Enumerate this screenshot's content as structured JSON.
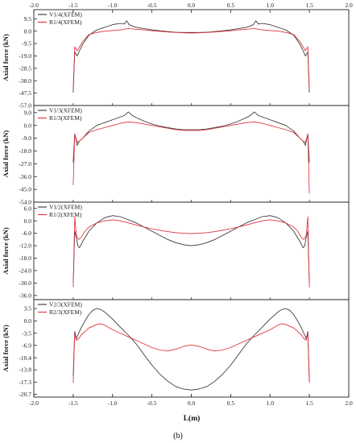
{
  "figure": {
    "caption": "(b)",
    "xlabel": "L(m)",
    "x_ticks": [
      "-2.0",
      "-1.5",
      "-1.0",
      "-0.5",
      "0.0",
      "0.5",
      "1.0",
      "1.5",
      "2.0"
    ],
    "x_range": [
      -2.0,
      2.0
    ]
  },
  "colors": {
    "black_series": "#333333",
    "red_series": "#e0303a",
    "axis": "#222222"
  },
  "chart_data": [
    {
      "type": "line",
      "ylabel": "Axial force (kN)",
      "ylim": [
        -57.0,
        16.5
      ],
      "y_ticks": [
        9.5,
        0.0,
        -9.5,
        -19.0,
        -28.5,
        -38.0,
        -47.5,
        -57.0
      ],
      "y_tick_labels": [
        "9.5",
        "0.0",
        "-9.5",
        "-19.0",
        "-28.5",
        "-38.0",
        "-47.5",
        "-57.0"
      ],
      "legend_position": "top-left",
      "series": [
        {
          "name": "V1/4(XFEM)",
          "color": "#333333",
          "x": [
            -1.5,
            -1.48,
            -1.45,
            -1.42,
            -1.38,
            -1.3,
            -1.2,
            -1.1,
            -1.0,
            -0.95,
            -0.9,
            -0.85,
            -0.82,
            -0.79,
            -0.75,
            -0.7,
            -0.6,
            -0.5,
            -0.4,
            -0.3,
            -0.2,
            -0.1,
            0.0,
            0.1,
            0.2,
            0.3,
            0.4,
            0.5,
            0.6,
            0.7,
            0.75,
            0.79,
            0.82,
            0.85,
            0.9,
            0.95,
            1.0,
            1.1,
            1.2,
            1.3,
            1.38,
            1.42,
            1.45,
            1.48,
            1.5
          ],
          "y": [
            -47.0,
            -16.0,
            -19.0,
            -15.0,
            -10.0,
            -3.0,
            1.0,
            3.0,
            5.0,
            5.5,
            6.0,
            5.5,
            8.0,
            5.0,
            4.0,
            3.0,
            2.0,
            1.0,
            0.3,
            -0.3,
            -0.8,
            -1.0,
            -1.0,
            -1.0,
            -0.8,
            -0.3,
            0.3,
            1.0,
            2.0,
            3.0,
            4.0,
            5.0,
            8.0,
            5.5,
            6.0,
            5.5,
            5.0,
            3.0,
            1.0,
            -3.0,
            -10.0,
            -15.0,
            -19.0,
            -16.0,
            -47.0
          ]
        },
        {
          "name": "R1/4(XFEM)",
          "color": "#e0303a",
          "x": [
            -1.5,
            -1.48,
            -1.45,
            -1.42,
            -1.38,
            -1.3,
            -1.2,
            -1.1,
            -1.0,
            -0.9,
            -0.8,
            -0.7,
            -0.6,
            -0.5,
            -0.4,
            -0.3,
            -0.2,
            -0.1,
            0.0,
            0.1,
            0.2,
            0.3,
            0.4,
            0.5,
            0.6,
            0.7,
            0.8,
            0.9,
            1.0,
            1.1,
            1.2,
            1.3,
            1.38,
            1.42,
            1.45,
            1.48,
            1.5
          ],
          "y": [
            -45.0,
            -12.0,
            -15.0,
            -12.0,
            -8.0,
            -2.5,
            -1.0,
            0.0,
            0.5,
            1.0,
            2.0,
            1.5,
            1.0,
            0.3,
            -0.2,
            -0.6,
            -1.0,
            -1.2,
            -1.5,
            -1.2,
            -1.0,
            -0.6,
            -0.2,
            0.3,
            1.0,
            1.5,
            2.0,
            1.0,
            0.5,
            0.0,
            -1.0,
            -2.5,
            -8.0,
            -12.0,
            -15.0,
            -12.0,
            -45.0
          ]
        }
      ]
    },
    {
      "type": "line",
      "ylabel": "Axial force (kN)",
      "ylim": [
        -54.0,
        14.0
      ],
      "y_ticks": [
        9.0,
        0.0,
        -9.0,
        -18.0,
        -27.0,
        -36.0,
        -45.0,
        -54.0
      ],
      "y_tick_labels": [
        "9.0",
        "0.0",
        "-9.0",
        "-18.0",
        "-27.0",
        "-36.0",
        "-45.0",
        "-54.0"
      ],
      "legend_position": "top-left",
      "series": [
        {
          "name": "V1/3(XFEM)",
          "color": "#333333",
          "x": [
            -1.5,
            -1.48,
            -1.45,
            -1.42,
            -1.38,
            -1.3,
            -1.2,
            -1.1,
            -1.0,
            -0.9,
            -0.85,
            -0.8,
            -0.75,
            -0.7,
            -0.6,
            -0.5,
            -0.4,
            -0.3,
            -0.2,
            -0.1,
            0.0,
            0.1,
            0.2,
            0.3,
            0.4,
            0.5,
            0.6,
            0.7,
            0.75,
            0.8,
            0.85,
            0.9,
            1.0,
            1.1,
            1.2,
            1.3,
            1.38,
            1.42,
            1.45,
            1.48,
            1.5
          ],
          "y": [
            -26.0,
            -6.0,
            -14.0,
            -11.0,
            -9.0,
            -4.0,
            0.0,
            2.0,
            4.0,
            6.0,
            7.0,
            9.5,
            7.0,
            5.5,
            3.0,
            1.0,
            -0.5,
            -1.5,
            -2.5,
            -3.0,
            -3.0,
            -3.0,
            -2.5,
            -1.5,
            -0.5,
            1.0,
            3.0,
            5.5,
            7.0,
            9.5,
            7.0,
            6.0,
            4.0,
            2.0,
            0.0,
            -4.0,
            -9.0,
            -11.0,
            -14.0,
            -6.0,
            -26.0
          ]
        },
        {
          "name": "R1/3(XFEM)",
          "color": "#e0303a",
          "x": [
            -1.5,
            -1.48,
            -1.45,
            -1.42,
            -1.38,
            -1.3,
            -1.2,
            -1.1,
            -1.0,
            -0.9,
            -0.8,
            -0.7,
            -0.6,
            -0.5,
            -0.4,
            -0.3,
            -0.2,
            -0.1,
            0.0,
            0.1,
            0.2,
            0.3,
            0.4,
            0.5,
            0.6,
            0.7,
            0.8,
            0.9,
            1.0,
            1.1,
            1.2,
            1.3,
            1.38,
            1.42,
            1.45,
            1.48,
            1.5
          ],
          "y": [
            -42.0,
            -6.0,
            -12.0,
            -11.0,
            -9.0,
            -5.0,
            -3.0,
            -1.5,
            0.0,
            1.5,
            2.5,
            2.0,
            1.0,
            0.0,
            -1.0,
            -2.0,
            -3.0,
            -3.5,
            -3.5,
            -3.5,
            -3.0,
            -2.0,
            -1.0,
            0.0,
            1.0,
            2.0,
            2.5,
            1.5,
            0.0,
            -1.5,
            -3.0,
            -5.0,
            -9.0,
            -11.0,
            -12.0,
            -6.0,
            -48.0
          ]
        }
      ]
    },
    {
      "type": "line",
      "ylabel": "Axial force (kN)",
      "ylim": [
        -38.0,
        9.0
      ],
      "y_ticks": [
        6.0,
        0.0,
        -6.0,
        -12.0,
        -18.0,
        -24.0,
        -30.0,
        -36.0
      ],
      "y_tick_labels": [
        "6.0",
        "0.0",
        "-6.0",
        "-12.0",
        "-18.0",
        "-24.0",
        "-30.0",
        "-36.0"
      ],
      "legend_position": "top-left",
      "series": [
        {
          "name": "V1/2(XFEM)",
          "color": "#333333",
          "x": [
            -1.5,
            -1.48,
            -1.46,
            -1.44,
            -1.42,
            -1.38,
            -1.3,
            -1.2,
            -1.1,
            -1.0,
            -0.9,
            -0.8,
            -0.7,
            -0.6,
            -0.5,
            -0.4,
            -0.3,
            -0.2,
            -0.1,
            0.0,
            0.1,
            0.2,
            0.3,
            0.4,
            0.5,
            0.6,
            0.7,
            0.8,
            0.9,
            1.0,
            1.1,
            1.2,
            1.3,
            1.38,
            1.42,
            1.44,
            1.46,
            1.48,
            1.5
          ],
          "y": [
            -30.0,
            -5.0,
            -8.0,
            -12.0,
            -13.0,
            -10.0,
            -5.0,
            -1.0,
            1.5,
            2.5,
            2.0,
            0.5,
            -1.0,
            -3.0,
            -5.0,
            -7.0,
            -9.0,
            -10.5,
            -11.5,
            -12.0,
            -11.5,
            -10.5,
            -9.0,
            -7.0,
            -5.0,
            -3.0,
            -1.0,
            0.5,
            2.0,
            2.5,
            1.5,
            -1.0,
            -5.0,
            -10.0,
            -13.0,
            -12.0,
            -8.0,
            -5.0,
            -30.0
          ]
        },
        {
          "name": "R1/2(XFEM)",
          "color": "#e0303a",
          "x": [
            -1.5,
            -1.48,
            -1.46,
            -1.43,
            -1.4,
            -1.35,
            -1.3,
            -1.2,
            -1.1,
            -1.0,
            -0.9,
            -0.8,
            -0.7,
            -0.6,
            -0.5,
            -0.4,
            -0.3,
            -0.2,
            -0.1,
            0.0,
            0.1,
            0.2,
            0.3,
            0.4,
            0.5,
            0.6,
            0.7,
            0.8,
            0.9,
            1.0,
            1.1,
            1.2,
            1.3,
            1.35,
            1.4,
            1.43,
            1.46,
            1.48,
            1.5
          ],
          "y": [
            -32.0,
            2.0,
            -7.0,
            -9.0,
            -8.0,
            -5.0,
            -3.0,
            -1.0,
            0.0,
            0.5,
            0.0,
            -1.0,
            -2.0,
            -3.0,
            -3.8,
            -4.5,
            -5.2,
            -5.7,
            -6.0,
            -6.2,
            -6.0,
            -5.7,
            -5.2,
            -4.5,
            -3.8,
            -3.0,
            -2.0,
            -1.0,
            0.0,
            0.5,
            0.0,
            -1.0,
            -3.0,
            -5.0,
            -8.0,
            -9.0,
            -7.0,
            2.0,
            -32.0
          ]
        }
      ]
    },
    {
      "type": "line",
      "ylabel": "Axial force (kN)",
      "ylim": [
        -21.5,
        6.0
      ],
      "y_ticks": [
        3.5,
        0.0,
        -3.5,
        -6.9,
        -10.4,
        -13.8,
        -17.3,
        -20.7
      ],
      "y_tick_labels": [
        "3.5",
        "0.0",
        "-3.5",
        "-6.9",
        "-10.4",
        "-13.8",
        "-17.3",
        "-20.7"
      ],
      "legend_position": "top-left",
      "series": [
        {
          "name": "V2/3(XFEM)",
          "color": "#333333",
          "x": [
            -1.5,
            -1.48,
            -1.46,
            -1.44,
            -1.4,
            -1.35,
            -1.3,
            -1.25,
            -1.2,
            -1.15,
            -1.1,
            -1.0,
            -0.9,
            -0.8,
            -0.7,
            -0.6,
            -0.5,
            -0.4,
            -0.3,
            -0.2,
            -0.1,
            0.0,
            0.1,
            0.2,
            0.3,
            0.4,
            0.5,
            0.6,
            0.7,
            0.8,
            0.9,
            1.0,
            1.1,
            1.15,
            1.2,
            1.25,
            1.3,
            1.35,
            1.4,
            1.44,
            1.46,
            1.48,
            1.5
          ],
          "y": [
            -15.5,
            -3.0,
            -5.0,
            -4.0,
            -2.0,
            0.0,
            1.8,
            3.0,
            3.5,
            3.2,
            2.5,
            0.5,
            -1.8,
            -4.0,
            -6.5,
            -9.5,
            -12.5,
            -15.0,
            -17.0,
            -18.5,
            -19.2,
            -19.5,
            -19.2,
            -18.5,
            -17.0,
            -15.0,
            -12.5,
            -9.5,
            -6.5,
            -4.0,
            -1.8,
            0.5,
            2.5,
            3.2,
            3.5,
            3.0,
            1.8,
            0.0,
            -2.0,
            -4.0,
            -5.0,
            -3.0,
            -17.0
          ]
        },
        {
          "name": "R2/3(XFEM)",
          "color": "#e0303a",
          "x": [
            -1.5,
            -1.48,
            -1.46,
            -1.43,
            -1.4,
            -1.35,
            -1.3,
            -1.2,
            -1.15,
            -1.1,
            -1.0,
            -0.9,
            -0.8,
            -0.7,
            -0.6,
            -0.5,
            -0.4,
            -0.3,
            -0.2,
            -0.1,
            0.0,
            0.1,
            0.2,
            0.3,
            0.4,
            0.5,
            0.6,
            0.7,
            0.8,
            0.9,
            1.0,
            1.1,
            1.15,
            1.2,
            1.3,
            1.35,
            1.4,
            1.43,
            1.46,
            1.48,
            1.5
          ],
          "y": [
            -17.5,
            -3.5,
            -5.5,
            -5.0,
            -4.0,
            -3.0,
            -2.0,
            -1.0,
            -0.8,
            -1.2,
            -2.5,
            -3.5,
            -4.5,
            -5.5,
            -6.5,
            -7.5,
            -8.2,
            -8.5,
            -8.0,
            -7.2,
            -6.8,
            -7.2,
            -8.0,
            -8.5,
            -8.2,
            -7.5,
            -6.5,
            -5.5,
            -4.5,
            -3.5,
            -2.5,
            -1.2,
            -0.8,
            -1.0,
            -2.0,
            -3.0,
            -4.0,
            -5.0,
            -5.5,
            -3.5,
            -17.5
          ]
        }
      ]
    }
  ]
}
